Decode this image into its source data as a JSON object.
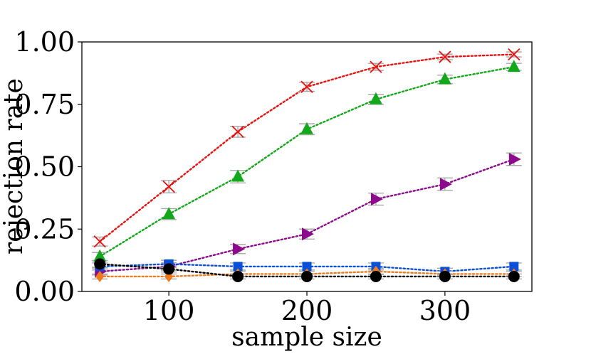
{
  "chart_data": {
    "type": "line",
    "title": "",
    "xlabel": "sample size",
    "ylabel": "rejection rate",
    "xlim": [
      37,
      363
    ],
    "ylim": [
      0,
      1
    ],
    "xticks": [
      100,
      200,
      300
    ],
    "xtick_labels": [
      "100",
      "200",
      "300"
    ],
    "yticks": [
      0,
      0.25,
      0.5,
      0.75,
      1.0
    ],
    "ytick_labels": [
      "0.00",
      "0.25",
      "0.50",
      "0.75",
      "1.00"
    ],
    "grid": false,
    "x": [
      50,
      100,
      150,
      200,
      250,
      300,
      350
    ],
    "series": [
      {
        "name": "red-x",
        "color": "#e8110f",
        "marker": "x",
        "values": [
          0.2,
          0.42,
          0.64,
          0.82,
          0.9,
          0.94,
          0.95
        ],
        "errors": [
          0.018,
          0.025,
          0.022,
          0.018,
          0.014,
          0.011,
          0.01
        ]
      },
      {
        "name": "green-triangle",
        "color": "#12a81a",
        "marker": "triangle-up",
        "values": [
          0.14,
          0.31,
          0.46,
          0.65,
          0.77,
          0.85,
          0.9
        ],
        "errors": [
          0.016,
          0.022,
          0.025,
          0.022,
          0.02,
          0.017,
          0.014
        ]
      },
      {
        "name": "purple-triangle-right",
        "color": "#8c0b8c",
        "marker": "triangle-right",
        "values": [
          0.08,
          0.1,
          0.17,
          0.23,
          0.37,
          0.43,
          0.53
        ],
        "errors": [
          0.014,
          0.015,
          0.018,
          0.02,
          0.024,
          0.025,
          0.025
        ]
      },
      {
        "name": "blue-square",
        "color": "#0a4fd8",
        "marker": "square",
        "values": [
          0.1,
          0.11,
          0.1,
          0.1,
          0.1,
          0.08,
          0.1
        ],
        "errors": [
          0.014,
          0.015,
          0.014,
          0.014,
          0.014,
          0.013,
          0.014
        ]
      },
      {
        "name": "orange-diamond",
        "color": "#f07a1a",
        "marker": "diamond",
        "values": [
          0.06,
          0.06,
          0.07,
          0.07,
          0.08,
          0.07,
          0.07
        ],
        "errors": [
          0.01,
          0.01,
          0.011,
          0.011,
          0.012,
          0.011,
          0.011
        ]
      },
      {
        "name": "black-circle",
        "color": "#000000",
        "marker": "circle",
        "values": [
          0.11,
          0.09,
          0.06,
          0.06,
          0.06,
          0.06,
          0.06
        ],
        "errors": [
          0.013,
          0.012,
          0.01,
          0.01,
          0.01,
          0.01,
          0.01
        ]
      }
    ]
  }
}
